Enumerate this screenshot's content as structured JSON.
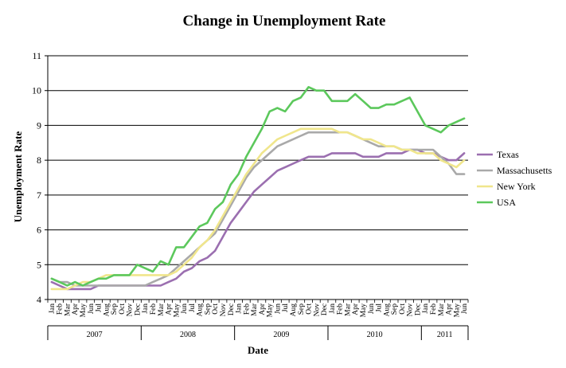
{
  "chart_data": {
    "type": "line",
    "title": "Change in Unemployment Rate",
    "xlabel": "Date",
    "ylabel": "Unemployment Rate",
    "ylim": [
      4,
      11
    ],
    "yticks": [
      4,
      5,
      6,
      7,
      8,
      9,
      10,
      11
    ],
    "grid": "horizontal",
    "legend_position": "right",
    "x_months": [
      "Jan",
      "Feb",
      "Mar",
      "Apr",
      "May",
      "Jun",
      "Jul",
      "Aug",
      "Sep",
      "Oct",
      "Nov",
      "Dec",
      "Jan",
      "Feb",
      "Mar",
      "Apr",
      "May",
      "Jun",
      "Jul",
      "Aug",
      "Sep",
      "Oct",
      "Nov",
      "Dec",
      "Jan",
      "Feb",
      "Mar",
      "Apr",
      "May",
      "Jun",
      "Jul",
      "Aug",
      "Sep",
      "Oct",
      "Nov",
      "Dec",
      "Jan",
      "Feb",
      "Mar",
      "Apr",
      "May",
      "Jun",
      "Jul",
      "Aug",
      "Sep",
      "Oct",
      "Nov",
      "Dec",
      "Jan",
      "Feb",
      "Mar",
      "Apr",
      "May",
      "Jun"
    ],
    "x_years": [
      {
        "label": "2007",
        "start": 0,
        "count": 12
      },
      {
        "label": "2008",
        "start": 12,
        "count": 12
      },
      {
        "label": "2009",
        "start": 24,
        "count": 12
      },
      {
        "label": "2010",
        "start": 36,
        "count": 12
      },
      {
        "label": "2011",
        "start": 48,
        "count": 6
      }
    ],
    "series": [
      {
        "name": "Texas",
        "color": "#9b6fb0",
        "values": [
          4.5,
          4.4,
          4.3,
          4.3,
          4.3,
          4.3,
          4.4,
          4.4,
          4.4,
          4.4,
          4.4,
          4.4,
          4.4,
          4.4,
          4.4,
          4.5,
          4.6,
          4.8,
          4.9,
          5.1,
          5.2,
          5.4,
          5.8,
          6.2,
          6.5,
          6.8,
          7.1,
          7.3,
          7.5,
          7.7,
          7.8,
          7.9,
          8.0,
          8.1,
          8.1,
          8.1,
          8.2,
          8.2,
          8.2,
          8.2,
          8.1,
          8.1,
          8.1,
          8.2,
          8.2,
          8.2,
          8.3,
          8.3,
          8.2,
          8.2,
          8.1,
          8.0,
          8.0,
          8.2
        ]
      },
      {
        "name": "Massachusetts",
        "color": "#a9a9a9",
        "values": [
          4.6,
          4.5,
          4.5,
          4.4,
          4.4,
          4.4,
          4.4,
          4.4,
          4.4,
          4.4,
          4.4,
          4.4,
          4.4,
          4.5,
          4.6,
          4.7,
          4.9,
          5.1,
          5.3,
          5.5,
          5.7,
          5.9,
          6.3,
          6.7,
          7.1,
          7.5,
          7.8,
          8.0,
          8.2,
          8.4,
          8.5,
          8.6,
          8.7,
          8.8,
          8.8,
          8.8,
          8.8,
          8.8,
          8.8,
          8.7,
          8.6,
          8.5,
          8.4,
          8.4,
          8.4,
          8.3,
          8.3,
          8.3,
          8.3,
          8.3,
          8.1,
          7.9,
          7.6,
          7.6
        ]
      },
      {
        "name": "New York",
        "color": "#f0e68c",
        "values": [
          4.3,
          4.3,
          4.3,
          4.4,
          4.5,
          4.5,
          4.6,
          4.7,
          4.7,
          4.7,
          4.7,
          4.7,
          4.7,
          4.7,
          4.7,
          4.7,
          4.8,
          5.0,
          5.2,
          5.5,
          5.7,
          6.0,
          6.4,
          6.8,
          7.2,
          7.6,
          7.9,
          8.2,
          8.4,
          8.6,
          8.7,
          8.8,
          8.9,
          8.9,
          8.9,
          8.9,
          8.9,
          8.8,
          8.8,
          8.7,
          8.6,
          8.6,
          8.5,
          8.4,
          8.4,
          8.3,
          8.3,
          8.2,
          8.2,
          8.2,
          8.0,
          7.9,
          7.8,
          8.0
        ]
      },
      {
        "name": "USA",
        "color": "#5cc85c",
        "values": [
          4.6,
          4.5,
          4.4,
          4.5,
          4.4,
          4.5,
          4.6,
          4.6,
          4.7,
          4.7,
          4.7,
          5.0,
          4.9,
          4.8,
          5.1,
          5.0,
          5.5,
          5.5,
          5.8,
          6.1,
          6.2,
          6.6,
          6.8,
          7.3,
          7.6,
          8.1,
          8.5,
          8.9,
          9.4,
          9.5,
          9.4,
          9.7,
          9.8,
          10.1,
          10.0,
          10.0,
          9.7,
          9.7,
          9.7,
          9.9,
          9.7,
          9.5,
          9.5,
          9.6,
          9.6,
          9.7,
          9.8,
          9.4,
          9.0,
          8.9,
          8.8,
          9.0,
          9.1,
          9.2
        ]
      }
    ]
  }
}
